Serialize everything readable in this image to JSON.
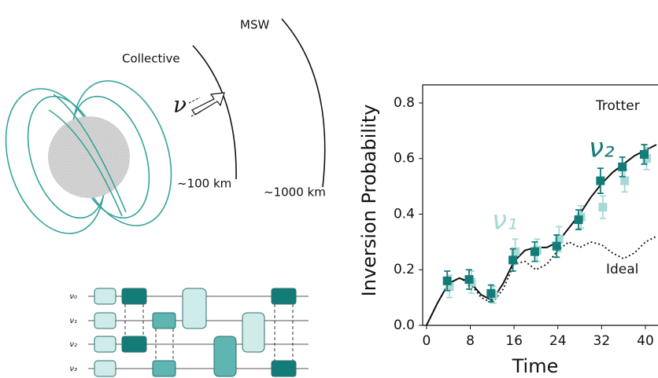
{
  "illustration": {
    "collective": "Collective",
    "collective_distance": "~100 km",
    "msw": "MSW",
    "msw_distance": "~1000 km",
    "neutrino": "ν"
  },
  "circuit": {
    "qubits": [
      "ν₀",
      "ν₁",
      "ν₂",
      "ν₃"
    ]
  },
  "chart_data": {
    "type": "line",
    "x_label": "Time",
    "y_label": "Inversion Probability",
    "xlim": [
      -0.7,
      42.3
    ],
    "ylim": [
      0,
      0.865
    ],
    "xticks": [
      0,
      8,
      16,
      24,
      32,
      40
    ],
    "yticks": [
      {
        "value": 0,
        "label": "0.0"
      },
      0.2,
      0.4,
      0.6,
      0.8
    ],
    "x": [
      4,
      8,
      12,
      16,
      20,
      24,
      28,
      32,
      36,
      40
    ],
    "series": [
      {
        "name": "ν₁",
        "color": "#a7d9d6",
        "values": [
          0.14,
          0.155,
          0.11,
          0.265,
          0.27,
          0.31,
          0.39,
          0.425,
          0.52,
          0.6
        ],
        "errors": [
          0.04,
          0.04,
          0.03,
          0.045,
          0.04,
          0.045,
          0.04,
          0.04,
          0.04,
          0.04
        ]
      },
      {
        "name": "ν₂",
        "color": "#137c78",
        "values": [
          0.16,
          0.165,
          0.115,
          0.235,
          0.265,
          0.285,
          0.38,
          0.52,
          0.57,
          0.615
        ],
        "errors": [
          0.035,
          0.035,
          0.03,
          0.04,
          0.035,
          0.04,
          0.035,
          0.045,
          0.035,
          0.035
        ]
      }
    ],
    "lines": [
      {
        "name": "Trotter",
        "color": "#111111",
        "style": "solid",
        "x": [
          0,
          2,
          4,
          6,
          8,
          10,
          12,
          14,
          16,
          18,
          20,
          22,
          24,
          26,
          28,
          30,
          32,
          34,
          36,
          38,
          40,
          42
        ],
        "values": [
          0,
          0.08,
          0.15,
          0.17,
          0.155,
          0.11,
          0.09,
          0.15,
          0.23,
          0.27,
          0.28,
          0.28,
          0.3,
          0.35,
          0.4,
          0.46,
          0.51,
          0.55,
          0.58,
          0.61,
          0.63,
          0.65
        ]
      },
      {
        "name": "Ideal",
        "color": "#111111",
        "style": "dotted",
        "x": [
          0,
          2,
          4,
          6,
          8,
          10,
          12,
          14,
          16,
          18,
          20,
          22,
          24,
          26,
          28,
          30,
          32,
          34,
          36,
          38,
          40,
          42
        ],
        "values": [
          0,
          0.08,
          0.15,
          0.17,
          0.15,
          0.1,
          0.08,
          0.13,
          0.22,
          0.23,
          0.2,
          0.22,
          0.27,
          0.3,
          0.28,
          0.3,
          0.29,
          0.26,
          0.24,
          0.26,
          0.3,
          0.32
        ]
      }
    ]
  }
}
